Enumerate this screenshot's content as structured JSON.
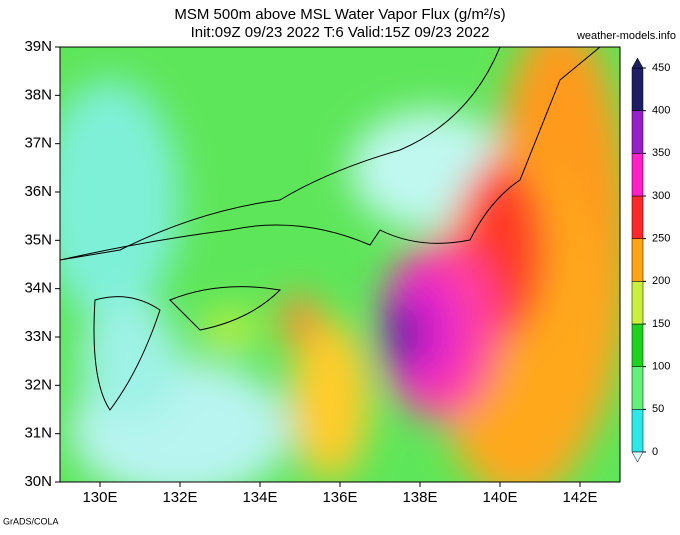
{
  "title": "MSM 500m above MSL Water Vapor Flux (g/m²/s)",
  "subtitle": "Init:09Z 09/23 2022  T:6 Valid:15Z 09/23 2022",
  "source": "weather-models.info",
  "credit": "GrADS/COLA",
  "map": {
    "lonlim": [
      129,
      143
    ],
    "latlim": [
      30,
      39
    ],
    "xticks": [
      {
        "value": 130,
        "label": "130E"
      },
      {
        "value": 132,
        "label": "132E"
      },
      {
        "value": 134,
        "label": "134E"
      },
      {
        "value": 136,
        "label": "136E"
      },
      {
        "value": 138,
        "label": "138E"
      },
      {
        "value": 140,
        "label": "140E"
      },
      {
        "value": 142,
        "label": "142E"
      }
    ],
    "yticks": [
      {
        "value": 30,
        "label": "30N"
      },
      {
        "value": 31,
        "label": "31N"
      },
      {
        "value": 32,
        "label": "32N"
      },
      {
        "value": 33,
        "label": "33N"
      },
      {
        "value": 34,
        "label": "34N"
      },
      {
        "value": 35,
        "label": "35N"
      },
      {
        "value": 36,
        "label": "36N"
      },
      {
        "value": 37,
        "label": "37N"
      },
      {
        "value": 38,
        "label": "38N"
      },
      {
        "value": 39,
        "label": "39N"
      }
    ]
  },
  "colorbar": {
    "lim": [
      0,
      450
    ],
    "ticks": [
      0,
      50,
      100,
      150,
      200,
      250,
      300,
      350,
      400,
      450
    ],
    "colors": [
      "#dff8f8",
      "#2ee8e8",
      "#64f07a",
      "#1ed21e",
      "#c8f03c",
      "#ffa514",
      "#ff2828",
      "#ff1ec8",
      "#9620c8",
      "#1e1e64"
    ]
  }
}
